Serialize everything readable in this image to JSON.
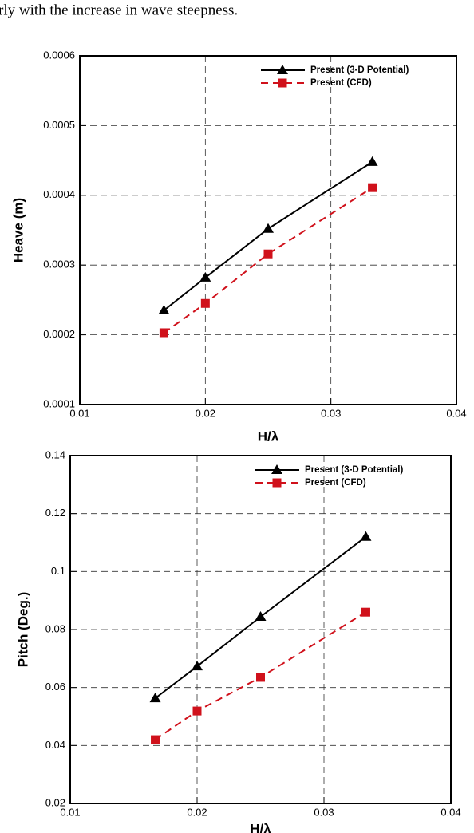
{
  "header_text": "rly with the increase in wave steepness.",
  "chart_data": [
    {
      "type": "line",
      "xlabel": "H/λ",
      "ylabel": "Heave (m)",
      "x": [
        0.0167,
        0.02,
        0.025,
        0.0333
      ],
      "series": [
        {
          "name": "Present (3-D Potential)",
          "color": "#000000",
          "marker": "triangle",
          "linestyle": "solid",
          "values": [
            0.000235,
            0.000282,
            0.000352,
            0.000448
          ]
        },
        {
          "name": "Present (CFD)",
          "color": "#d0111b",
          "marker": "square",
          "linestyle": "dashed",
          "values": [
            0.000203,
            0.000245,
            0.000316,
            0.000411
          ]
        }
      ],
      "xlim": [
        0.01,
        0.04
      ],
      "xticks": [
        0.01,
        0.02,
        0.03,
        0.04
      ],
      "ylim": [
        0.0001,
        0.0006
      ],
      "yticks": [
        0.0001,
        0.0002,
        0.0003,
        0.0004,
        0.0005,
        0.0006
      ],
      "grid": true,
      "legend": "upper right"
    },
    {
      "type": "line",
      "xlabel": "H/λ",
      "ylabel": "Pitch (Deg.)",
      "x": [
        0.0167,
        0.02,
        0.025,
        0.0333
      ],
      "series": [
        {
          "name": "Present (3-D Potential)",
          "color": "#000000",
          "marker": "triangle",
          "linestyle": "solid",
          "values": [
            0.0563,
            0.0673,
            0.0844,
            0.112
          ]
        },
        {
          "name": "Present (CFD)",
          "color": "#d0111b",
          "marker": "square",
          "linestyle": "dashed",
          "values": [
            0.042,
            0.0519,
            0.0635,
            0.086
          ]
        }
      ],
      "xlim": [
        0.01,
        0.04
      ],
      "xticks": [
        0.01,
        0.02,
        0.03,
        0.04
      ],
      "ylim": [
        0.02,
        0.14
      ],
      "yticks": [
        0.02,
        0.04,
        0.06,
        0.08,
        0.1,
        0.12,
        0.14
      ],
      "grid": true,
      "legend": "upper right"
    }
  ]
}
